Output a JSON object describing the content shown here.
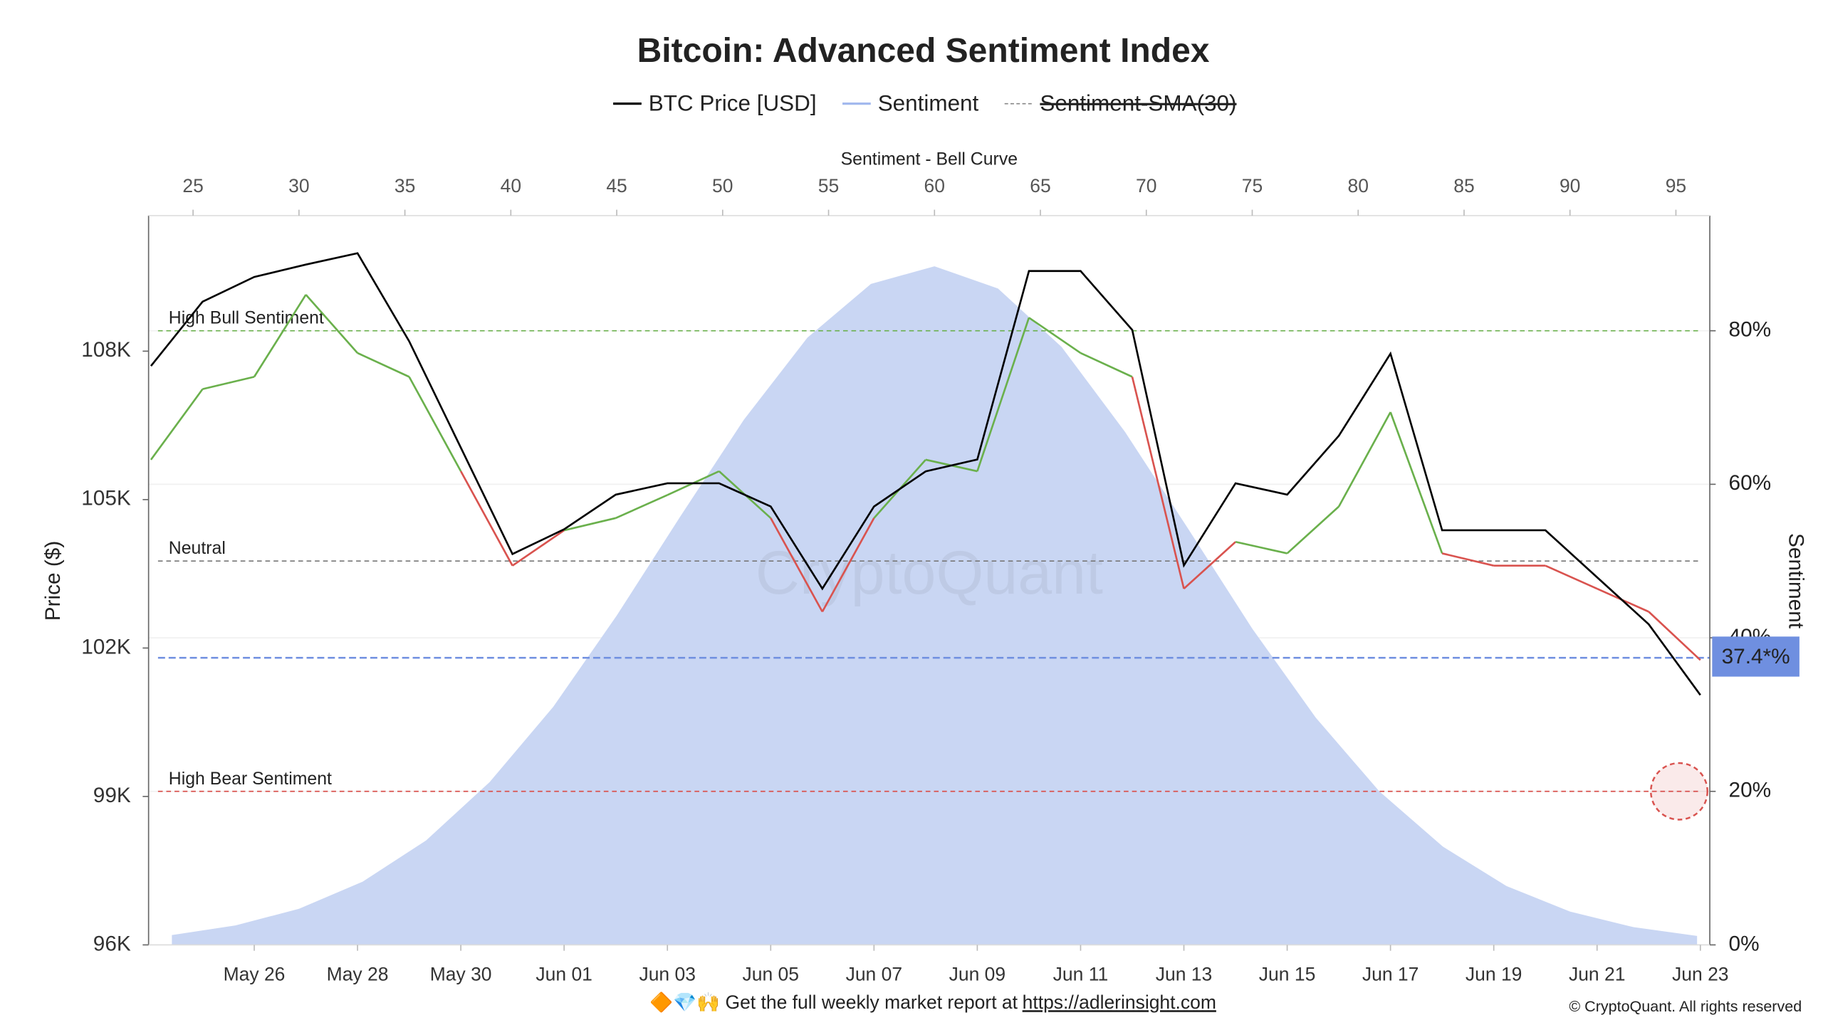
{
  "chart_data": {
    "type": "line",
    "title": "Bitcoin: Advanced Sentiment Index",
    "x": [
      "May 24",
      "May 25",
      "May 26",
      "May 27",
      "May 28",
      "May 29",
      "May 30",
      "May 31",
      "Jun 01",
      "Jun 02",
      "Jun 03",
      "Jun 04",
      "Jun 05",
      "Jun 06",
      "Jun 07",
      "Jun 08",
      "Jun 09",
      "Jun 10",
      "Jun 11",
      "Jun 12",
      "Jun 13",
      "Jun 14",
      "Jun 15",
      "Jun 16",
      "Jun 17",
      "Jun 18",
      "Jun 19",
      "Jun 20",
      "Jun 21",
      "Jun 22",
      "Jun 23"
    ],
    "xticks": [
      "May 26",
      "May 28",
      "May 30",
      "Jun 01",
      "Jun 03",
      "Jun 05",
      "Jun 07",
      "Jun 09",
      "Jun 11",
      "Jun 13",
      "Jun 15",
      "Jun 17",
      "Jun 19",
      "Jun 21",
      "Jun 23"
    ],
    "series": [
      {
        "name": "BTC Price [USD]",
        "color": "#000000",
        "values": [
          107700,
          109000,
          109500,
          109750,
          109980,
          108200,
          106050,
          103900,
          104400,
          105100,
          105330,
          105330,
          104860,
          103200,
          104860,
          105570,
          105810,
          109620,
          109620,
          108430,
          103670,
          105330,
          105100,
          106290,
          107950,
          104380,
          104380,
          104380,
          103430,
          102480,
          101050
        ]
      },
      {
        "name": "Sentiment",
        "color": "#a3b9ee",
        "axis": "y2",
        "above_color": "#6ab04c",
        "below_color": "#d9534f",
        "values": [
          63.2,
          72.4,
          74.0,
          84.7,
          77.1,
          74.0,
          61.7,
          49.4,
          54.0,
          55.6,
          58.6,
          61.7,
          55.6,
          43.4,
          55.6,
          63.2,
          61.7,
          81.7,
          77.1,
          74.0,
          46.4,
          52.5,
          51.0,
          57.1,
          69.4,
          51.0,
          49.4,
          49.4,
          46.4,
          43.4,
          37.1
        ]
      },
      {
        "name": "Sentiment-SMA(30)",
        "color": "#888888",
        "hidden": true
      }
    ],
    "ylabel": "Price ($)",
    "ylim": [
      96000,
      110740
    ],
    "yticks": [
      {
        "value": 96000,
        "label": "96K"
      },
      {
        "value": 99000,
        "label": "99K"
      },
      {
        "value": 102000,
        "label": "102K"
      },
      {
        "value": 105000,
        "label": "105K"
      },
      {
        "value": 108000,
        "label": "108K"
      }
    ],
    "y2label": "Sentiment",
    "y2lim": [
      0,
      95
    ],
    "y2ticks": [
      {
        "value": 0,
        "label": "0%"
      },
      {
        "value": 20,
        "label": "20%"
      },
      {
        "value": 40,
        "label": "40%"
      },
      {
        "value": 60,
        "label": "60%"
      },
      {
        "value": 80,
        "label": "80%"
      }
    ],
    "bell_curve": {
      "label": "Sentiment - Bell Curve",
      "color": "#c9d6f3",
      "axis": "y2",
      "x": [
        24,
        27,
        30,
        33,
        36,
        39,
        42,
        45,
        48,
        51,
        54,
        57,
        60,
        63,
        66,
        69,
        72,
        75,
        78,
        81,
        84,
        87,
        90,
        93,
        96
      ],
      "values": [
        1.28,
        2.53,
        4.7,
        8.23,
        13.6,
        21.2,
        31.0,
        42.9,
        55.8,
        68.4,
        79.1,
        86.1,
        88.4,
        85.5,
        77.9,
        66.8,
        54.1,
        41.2,
        29.6,
        20.0,
        12.8,
        7.67,
        4.34,
        2.31,
        1.17
      ],
      "xlim": [
        22.9,
        96.6
      ],
      "xticks": [
        25,
        30,
        35,
        40,
        45,
        50,
        55,
        60,
        65,
        70,
        75,
        80,
        85,
        90,
        95
      ]
    },
    "levels": [
      {
        "label": "High Bull Sentiment",
        "value": 80,
        "color": "#6ab04c"
      },
      {
        "label": "Neutral",
        "value": 50,
        "color": "#777777"
      },
      {
        "label": "High Bear Sentiment",
        "value": 20,
        "color": "#d9534f"
      }
    ],
    "current": {
      "value": 37.4,
      "label": "37.4*%",
      "color": "#6f8fe0"
    },
    "watermark": "CryptoQuant",
    "footer": {
      "text": "🔶💎🙌 Get the full weekly market report at",
      "link": "https://adlerinsight.com",
      "copyright": "© CryptoQuant. All rights reserved"
    },
    "grid": true
  }
}
